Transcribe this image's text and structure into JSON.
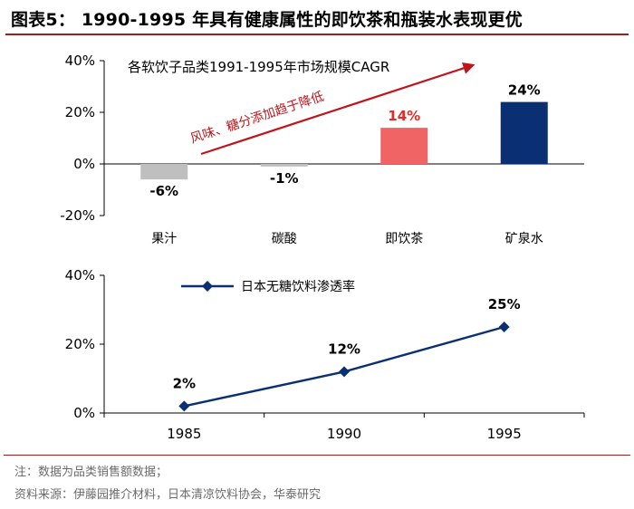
{
  "header": {
    "title": "图表5： 1990-1995 年具有健康属性的即饮茶和瓶装水表现更优"
  },
  "chart_data": [
    {
      "type": "bar",
      "title": "各软饮子品类1991-1995年市场规模CAGR",
      "categories": [
        "果汁",
        "碳酸",
        "即饮茶",
        "矿泉水"
      ],
      "values": [
        -6,
        -1,
        14,
        24
      ],
      "data_labels": [
        "-6%",
        "-1%",
        "14%",
        "24%"
      ],
      "ylim": [
        -20,
        40
      ],
      "yticks": [
        "40%",
        "20%",
        "0%",
        "-20%"
      ],
      "grid": false,
      "colors": [
        "#bfbfbf",
        "#bfbfbf",
        "#f06466",
        "#0b2f73"
      ],
      "label_colors": [
        "#000000",
        "#000000",
        "#e02b2b",
        "#000000"
      ],
      "annotation": {
        "text": "风味、糖分添加趋于降低",
        "color": "#c0141b"
      }
    },
    {
      "type": "line",
      "x": [
        "1985",
        "1990",
        "1995"
      ],
      "series": [
        {
          "name": "日本无糖饮料渗透率",
          "values": [
            2,
            12,
            25
          ],
          "data_labels": [
            "2%",
            "12%",
            "25%"
          ],
          "color": "#0b2f73"
        }
      ],
      "ylim": [
        0,
        40
      ],
      "yticks": [
        "40%",
        "20%",
        "0%"
      ],
      "legend": "top-left",
      "grid": false
    }
  ],
  "footer": {
    "note": "注：数据为品类销售额数据；",
    "source": "资料来源：伊藤园推介材料，日本清凉饮料协会，华泰研究"
  }
}
